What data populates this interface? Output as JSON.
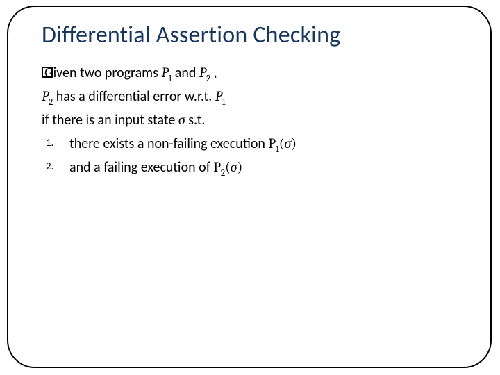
{
  "colors": {
    "title_color": "#17365d",
    "text_color": "#000000",
    "border_color": "#000000",
    "background": "#ffffff"
  },
  "typography": {
    "title_fontsize": 34,
    "body_fontsize": 20,
    "list_number_fontsize": 15,
    "font_family_body": "Calibri",
    "font_family_math": "Cambria Math"
  },
  "layout": {
    "slide_width": 720,
    "slide_height": 540,
    "border_radius": 40,
    "border_width": 2
  },
  "title": "Differential Assertion Checking",
  "line1_pre": "Given two programs ",
  "line1_p1": "P",
  "line1_p1_sub": "1",
  "line1_mid": " and ",
  "line1_p2": "P",
  "line1_p2_sub": "2",
  "line1_post": " ,",
  "line2_p2": "P",
  "line2_p2_sub": "2",
  "line2_mid": " has a differential error w.r.t. ",
  "line2_p1": "P",
  "line2_p1_sub": "1",
  "line3_pre": "if there is an input state ",
  "line3_sigma": "σ",
  "line3_post": " s.t.",
  "item1_num": "1.",
  "item1_text_pre": "there exists a non-failing execution ",
  "item1_P": "P",
  "item1_sub": "1",
  "item1_open": "(",
  "item1_sigma": "σ",
  "item1_close": ")",
  "item2_num": "2.",
  "item2_text_pre": "and a failing execution of ",
  "item2_P": "P",
  "item2_sub": "2",
  "item2_open": "(",
  "item2_sigma": "σ",
  "item2_close": ")"
}
